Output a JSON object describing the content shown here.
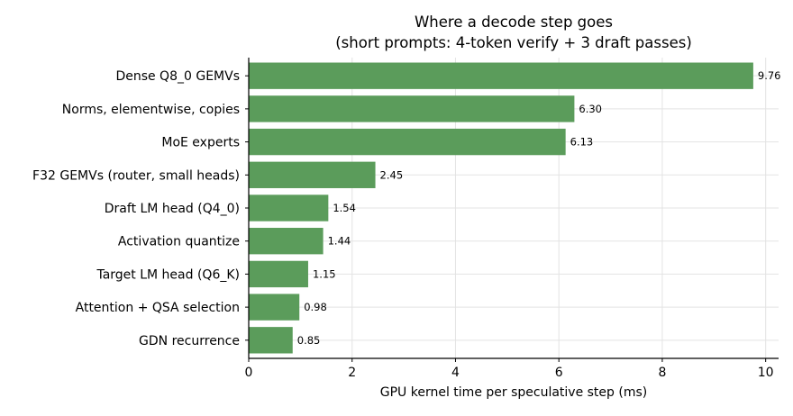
{
  "chart_data": {
    "type": "bar",
    "orientation": "horizontal",
    "title_lines": [
      "Where a decode step goes",
      "(short prompts: 4-token verify + 3 draft passes)"
    ],
    "xlabel": "GPU kernel time per speculative step (ms)",
    "ylabel": "",
    "categories": [
      "Dense Q8_0 GEMVs",
      "Norms, elementwise, copies",
      "MoE experts",
      "F32 GEMVs (router, small heads)",
      "Draft LM head (Q4_0)",
      "Activation quantize",
      "Target LM head (Q6_K)",
      "Attention + QSA selection",
      "GDN recurrence"
    ],
    "values": [
      9.76,
      6.3,
      6.13,
      2.45,
      1.54,
      1.44,
      1.15,
      0.98,
      0.85
    ],
    "value_labels": [
      "9.76",
      "6.30",
      "6.13",
      "2.45",
      "1.54",
      "1.44",
      "1.15",
      "0.98",
      "0.85"
    ],
    "xlim": [
      0,
      10.25
    ],
    "xticks": [
      0,
      2,
      4,
      6,
      8,
      10
    ],
    "xtick_labels": [
      "0",
      "2",
      "4",
      "6",
      "8",
      "10"
    ],
    "grid": true,
    "bar_color": "#5b9c5b"
  }
}
